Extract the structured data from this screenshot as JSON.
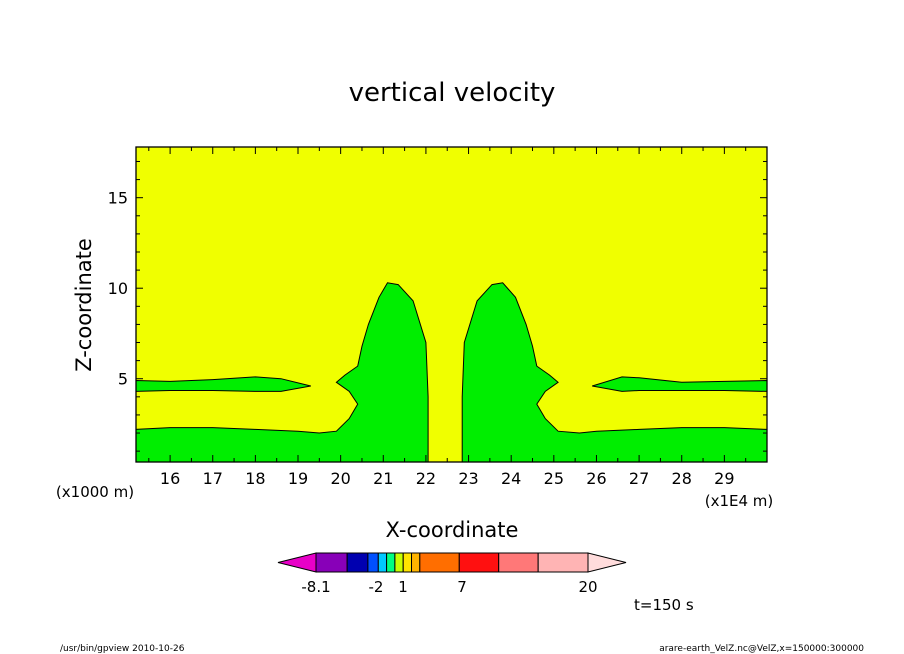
{
  "chart_data": {
    "type": "contour",
    "title": "vertical velocity",
    "xlabel": "X-coordinate",
    "ylabel": "Z-coordinate",
    "x_unit": "(x1E4 m)",
    "y_unit": "(x1000 m)",
    "xlim": [
      15.2,
      30.0
    ],
    "ylim": [
      0.4,
      17.8
    ],
    "x_ticks": [
      16,
      17,
      18,
      19,
      20,
      21,
      22,
      23,
      24,
      25,
      26,
      27,
      28,
      29
    ],
    "y_ticks": [
      5,
      10,
      15
    ],
    "background_level_color": "#f0ff00",
    "region_color": "#00ee00",
    "regions": [
      {
        "name": "left-layer",
        "points": [
          [
            15.2,
            0.4
          ],
          [
            15.2,
            2.2
          ],
          [
            16,
            2.3
          ],
          [
            17,
            2.3
          ],
          [
            18,
            2.2
          ],
          [
            19,
            2.1
          ],
          [
            19.5,
            2.0
          ],
          [
            19.9,
            2.1
          ],
          [
            20.2,
            2.8
          ],
          [
            20.4,
            3.6
          ],
          [
            20.2,
            4.3
          ],
          [
            19.9,
            4.8
          ],
          [
            20.1,
            5.2
          ],
          [
            20.4,
            5.7
          ],
          [
            20.5,
            6.8
          ],
          [
            20.65,
            8.0
          ],
          [
            20.9,
            9.5
          ],
          [
            21.1,
            10.3
          ],
          [
            21.35,
            10.2
          ],
          [
            21.7,
            9.3
          ],
          [
            22.0,
            7.0
          ],
          [
            22.05,
            4.0
          ],
          [
            22.05,
            0.4
          ]
        ]
      },
      {
        "name": "right-layer",
        "points": [
          [
            30.0,
            0.4
          ],
          [
            30.0,
            2.2
          ],
          [
            29,
            2.3
          ],
          [
            28,
            2.3
          ],
          [
            27,
            2.2
          ],
          [
            26,
            2.1
          ],
          [
            25.6,
            2.0
          ],
          [
            25.1,
            2.1
          ],
          [
            24.8,
            2.8
          ],
          [
            24.6,
            3.6
          ],
          [
            24.8,
            4.3
          ],
          [
            25.1,
            4.8
          ],
          [
            24.9,
            5.2
          ],
          [
            24.6,
            5.7
          ],
          [
            24.5,
            6.8
          ],
          [
            24.35,
            8.0
          ],
          [
            24.1,
            9.5
          ],
          [
            23.8,
            10.3
          ],
          [
            23.55,
            10.2
          ],
          [
            23.2,
            9.3
          ],
          [
            22.9,
            7.0
          ],
          [
            22.85,
            4.0
          ],
          [
            22.85,
            0.4
          ]
        ]
      },
      {
        "name": "left-stripe",
        "points": [
          [
            15.2,
            4.3
          ],
          [
            15.2,
            4.9
          ],
          [
            16,
            4.85
          ],
          [
            17,
            4.95
          ],
          [
            18,
            5.1
          ],
          [
            18.6,
            5.0
          ],
          [
            19.3,
            4.6
          ],
          [
            18.6,
            4.3
          ],
          [
            18,
            4.3
          ],
          [
            17,
            4.35
          ],
          [
            16,
            4.35
          ]
        ]
      },
      {
        "name": "right-stripe",
        "points": [
          [
            30.0,
            4.3
          ],
          [
            30.0,
            4.9
          ],
          [
            29,
            4.85
          ],
          [
            28,
            4.8
          ],
          [
            27,
            5.05
          ],
          [
            26.6,
            5.1
          ],
          [
            25.9,
            4.6
          ],
          [
            26.6,
            4.3
          ],
          [
            27,
            4.35
          ],
          [
            28,
            4.35
          ],
          [
            29,
            4.35
          ]
        ]
      }
    ],
    "colorbar": {
      "colors": [
        "#e800c8",
        "#8800b8",
        "#0000b0",
        "#0050ff",
        "#00c8ff",
        "#00ff80",
        "#c8ff00",
        "#ffe400",
        "#ffb400",
        "#ff6e00",
        "#ff1010",
        "#ff7878",
        "#ffb4b4",
        "#ffdcdc"
      ],
      "labels": [
        "-8.1",
        "-2",
        "1",
        "7",
        "20"
      ]
    },
    "time_label": "t=150 s"
  },
  "footer": {
    "left": "/usr/bin/gpview   2010-10-26",
    "right": "arare-earth_VelZ.nc@VelZ,x=150000:300000"
  }
}
